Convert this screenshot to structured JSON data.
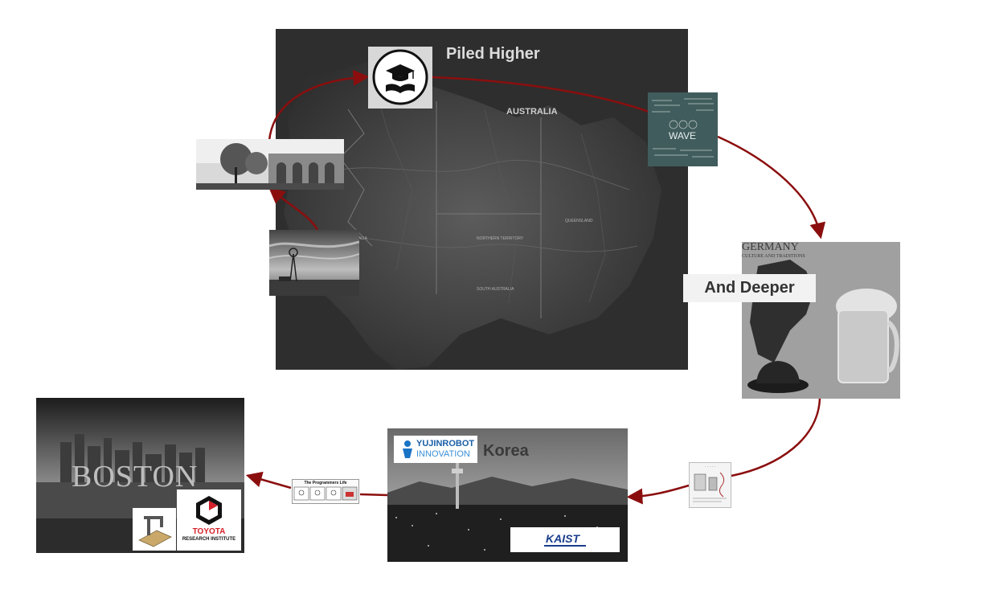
{
  "map": {
    "place_label": "AUSTRALIA",
    "region_labels": [
      "NORTHERN TERRITORY",
      "WESTERN AUSTRALIA",
      "SOUTH AUSTRALIA",
      "QUEENSLAND"
    ]
  },
  "stages": {
    "piled_higher": {
      "title": "Piled Higher",
      "icon": "graduation-cap-book-icon"
    },
    "chalkboard": {
      "text": "WAVE"
    },
    "germany": {
      "title": "GERMANY",
      "subtitle": "CULTURE AND TRADITIONS",
      "caption": "And Deeper"
    },
    "comic_small": {
      "title": "·  ·  ·  ·  ·"
    },
    "korea": {
      "title": "Korea",
      "yujin_line1": "YUJINROBOT",
      "yujin_line2": "INNOVATION",
      "kaist": "KAIST"
    },
    "programmers": {
      "title": "The Programmers Life"
    },
    "boston": {
      "title": "BOSTON",
      "toyota_line1": "TOYOTA",
      "toyota_line2": "RESEARCH INSTITUTE"
    }
  },
  "colors": {
    "arrow": "#8b0e0e",
    "map_bg": "#3a3a3a",
    "germany_bg": "#9a9a9a"
  }
}
